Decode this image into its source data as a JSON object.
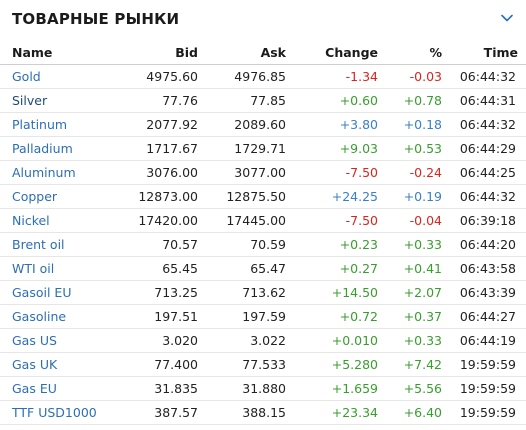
{
  "widget": {
    "title": "ТОВАРНЫЕ РЫНКИ",
    "chevron_icon": "chevron-down-icon"
  },
  "columns": {
    "name": "Name",
    "bid": "Bid",
    "ask": "Ask",
    "change": "Change",
    "percent": "%",
    "time": "Time"
  },
  "colors": {
    "positive": "#3a9d2f",
    "negative": "#d8261e",
    "neutral_blue": "#3a7fc9",
    "link": "#2c6fb6"
  },
  "rows": [
    {
      "name": "Gold",
      "bid": "4975.60",
      "ask": "4976.85",
      "change": "-1.34",
      "change_color": "neg",
      "pct": "-0.03",
      "pct_color": "neg",
      "time": "06:44:32"
    },
    {
      "name": "Silver",
      "bid": "77.76",
      "ask": "77.85",
      "change": "+0.60",
      "change_color": "pos",
      "pct": "+0.78",
      "pct_color": "pos",
      "time": "06:44:31",
      "dark": true
    },
    {
      "name": "Platinum",
      "bid": "2077.92",
      "ask": "2089.60",
      "change": "+3.80",
      "change_color": "blue",
      "pct": "+0.18",
      "pct_color": "blue",
      "time": "06:44:32"
    },
    {
      "name": "Palladium",
      "bid": "1717.67",
      "ask": "1729.71",
      "change": "+9.03",
      "change_color": "pos",
      "pct": "+0.53",
      "pct_color": "pos",
      "time": "06:44:29"
    },
    {
      "name": "Aluminum",
      "bid": "3076.00",
      "ask": "3077.00",
      "change": "-7.50",
      "change_color": "neg",
      "pct": "-0.24",
      "pct_color": "neg",
      "time": "06:44:25"
    },
    {
      "name": "Copper",
      "bid": "12873.00",
      "ask": "12875.50",
      "change": "+24.25",
      "change_color": "blue",
      "pct": "+0.19",
      "pct_color": "blue",
      "time": "06:44:32"
    },
    {
      "name": "Nickel",
      "bid": "17420.00",
      "ask": "17445.00",
      "change": "-7.50",
      "change_color": "neg",
      "pct": "-0.04",
      "pct_color": "neg",
      "time": "06:39:18"
    },
    {
      "name": "Brent oil",
      "bid": "70.57",
      "ask": "70.59",
      "change": "+0.23",
      "change_color": "pos",
      "pct": "+0.33",
      "pct_color": "pos",
      "time": "06:44:20"
    },
    {
      "name": "WTI oil",
      "bid": "65.45",
      "ask": "65.47",
      "change": "+0.27",
      "change_color": "pos",
      "pct": "+0.41",
      "pct_color": "pos",
      "time": "06:43:58"
    },
    {
      "name": "Gasoil EU",
      "bid": "713.25",
      "ask": "713.62",
      "change": "+14.50",
      "change_color": "pos",
      "pct": "+2.07",
      "pct_color": "pos",
      "time": "06:43:39"
    },
    {
      "name": "Gasoline",
      "bid": "197.51",
      "ask": "197.59",
      "change": "+0.72",
      "change_color": "pos",
      "pct": "+0.37",
      "pct_color": "pos",
      "time": "06:44:27"
    },
    {
      "name": "Gas US",
      "bid": "3.020",
      "ask": "3.022",
      "change": "+0.010",
      "change_color": "pos",
      "pct": "+0.33",
      "pct_color": "pos",
      "time": "06:44:19"
    },
    {
      "name": "Gas UK",
      "bid": "77.400",
      "ask": "77.533",
      "change": "+5.280",
      "change_color": "pos",
      "pct": "+7.42",
      "pct_color": "pos",
      "time": "19:59:59"
    },
    {
      "name": "Gas EU",
      "bid": "31.835",
      "ask": "31.880",
      "change": "+1.659",
      "change_color": "pos",
      "pct": "+5.56",
      "pct_color": "pos",
      "time": "19:59:59"
    },
    {
      "name": "TTF USD1000",
      "bid": "387.57",
      "ask": "388.15",
      "change": "+23.34",
      "change_color": "pos",
      "pct": "+6.40",
      "pct_color": "pos",
      "time": "19:59:59"
    }
  ]
}
